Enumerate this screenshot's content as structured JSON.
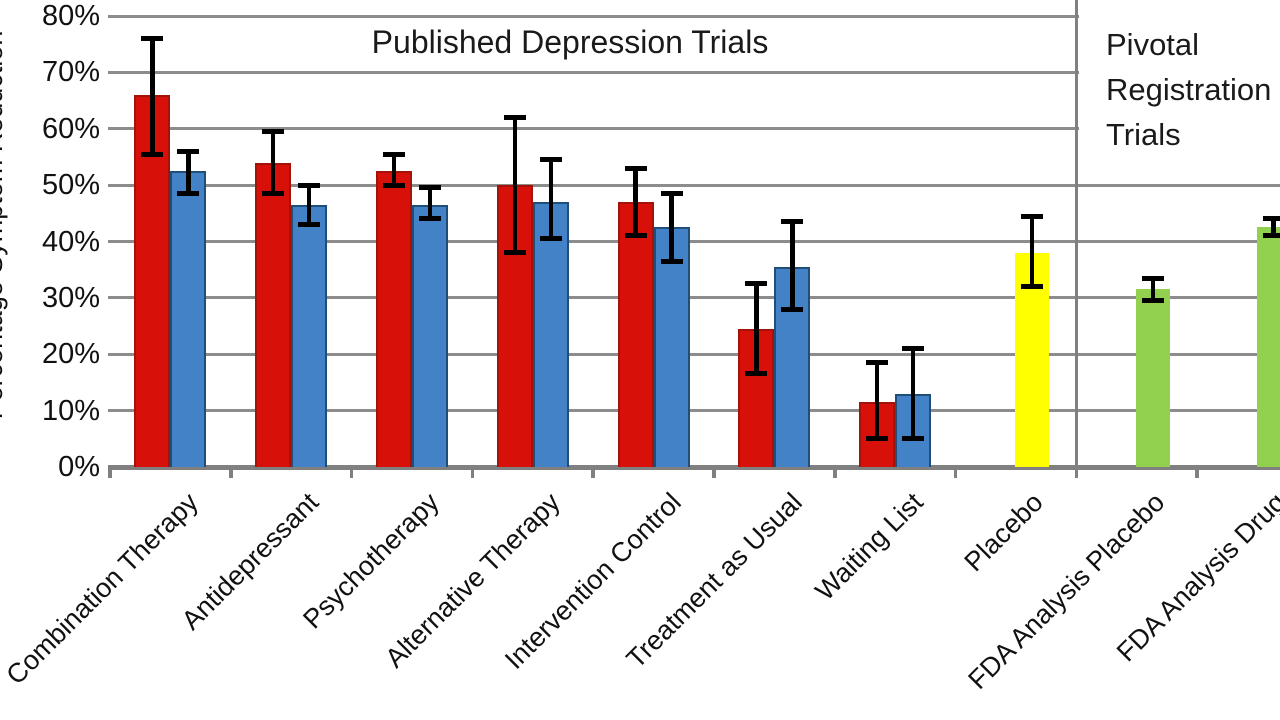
{
  "chart_data": {
    "type": "bar",
    "ylabel": "Percentage Symptom Reduction",
    "ylim": [
      0,
      80
    ],
    "grid": true,
    "legend": "none",
    "y_tick_labels": [
      "0%",
      "10%",
      "20%",
      "30%",
      "40%",
      "50%",
      "60%",
      "70%",
      "80%"
    ],
    "annotations": {
      "published_label": "Published Depression Trials",
      "pivotal_label_lines": [
        "Pivotal",
        "Registration",
        "Trials"
      ]
    },
    "series_colors": {
      "red": "#d7100a",
      "blue": "#4482c8",
      "yellow": "#ffff00",
      "green": "#92d050"
    },
    "series_border_colors": {
      "red": "#a31309",
      "blue": "#1f4e79"
    },
    "error_bar_color": "#000000",
    "gridline_color": "#8c8c8c",
    "axis_color": "#808080",
    "categories": [
      {
        "label": "Combination Therapy",
        "bars": [
          {
            "series": "red",
            "value": 66,
            "err_low": 55.5,
            "err_high": 76
          },
          {
            "series": "blue",
            "value": 52.5,
            "err_low": 48.5,
            "err_high": 56
          }
        ]
      },
      {
        "label": "Antidepressant",
        "bars": [
          {
            "series": "red",
            "value": 54,
            "err_low": 48.5,
            "err_high": 59.5
          },
          {
            "series": "blue",
            "value": 46.5,
            "err_low": 43,
            "err_high": 50
          }
        ]
      },
      {
        "label": "Psychotherapy",
        "bars": [
          {
            "series": "red",
            "value": 52.5,
            "err_low": 50,
            "err_high": 55.5
          },
          {
            "series": "blue",
            "value": 46.5,
            "err_low": 44,
            "err_high": 49.5
          }
        ]
      },
      {
        "label": "Alternative Therapy",
        "bars": [
          {
            "series": "red",
            "value": 50,
            "err_low": 38,
            "err_high": 62
          },
          {
            "series": "blue",
            "value": 47,
            "err_low": 40.5,
            "err_high": 54.5
          }
        ]
      },
      {
        "label": "Intervention Control",
        "bars": [
          {
            "series": "red",
            "value": 47,
            "err_low": 41,
            "err_high": 53
          },
          {
            "series": "blue",
            "value": 42.5,
            "err_low": 36.5,
            "err_high": 48.5
          }
        ]
      },
      {
        "label": "Treatment as Usual",
        "bars": [
          {
            "series": "red",
            "value": 24.5,
            "err_low": 16.5,
            "err_high": 32.5
          },
          {
            "series": "blue",
            "value": 35.5,
            "err_low": 28,
            "err_high": 43.5
          }
        ]
      },
      {
        "label": "Waiting List",
        "bars": [
          {
            "series": "red",
            "value": 11.5,
            "err_low": 5,
            "err_high": 18.5
          },
          {
            "series": "blue",
            "value": 13,
            "err_low": 5,
            "err_high": 21
          }
        ]
      },
      {
        "label": "Placebo",
        "bars": [
          {
            "series": "yellow",
            "value": 38,
            "err_low": 32,
            "err_high": 44.5
          }
        ]
      },
      {
        "label": "FDA Analysis Placebo",
        "bars": [
          {
            "series": "green",
            "value": 31.5,
            "err_low": 29.5,
            "err_high": 33.5
          }
        ]
      },
      {
        "label": "FDA Analysis Drug",
        "bars": [
          {
            "series": "green",
            "value": 42.5,
            "err_low": 41,
            "err_high": 44
          }
        ]
      }
    ]
  }
}
